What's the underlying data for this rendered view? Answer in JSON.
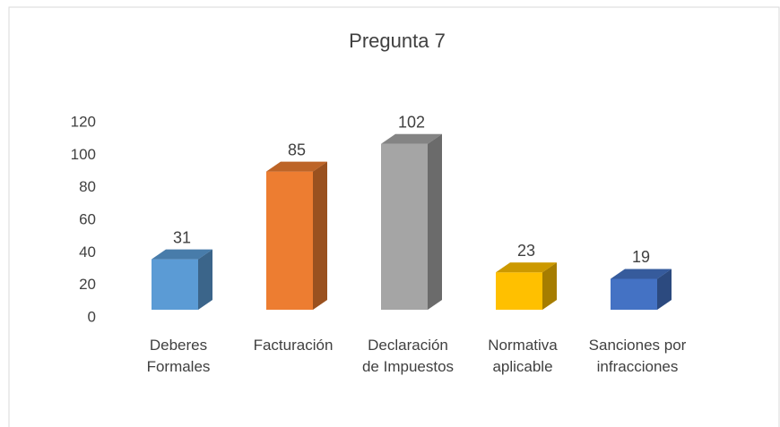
{
  "chart_data": {
    "type": "bar3d",
    "title": "Pregunta 7",
    "categories": [
      "Deberes Formales",
      "Facturación",
      "Declaración de Impuestos",
      "Normativa aplicable",
      "Sanciones por infracciones"
    ],
    "values": [
      31,
      85,
      102,
      23,
      19
    ],
    "colors": [
      "#5b9bd5",
      "#ed7d31",
      "#a5a5a5",
      "#ffc000",
      "#4472c4"
    ],
    "ylim": [
      0,
      120
    ],
    "yticks": [
      0,
      20,
      40,
      60,
      80,
      100,
      120
    ],
    "grid": false
  }
}
